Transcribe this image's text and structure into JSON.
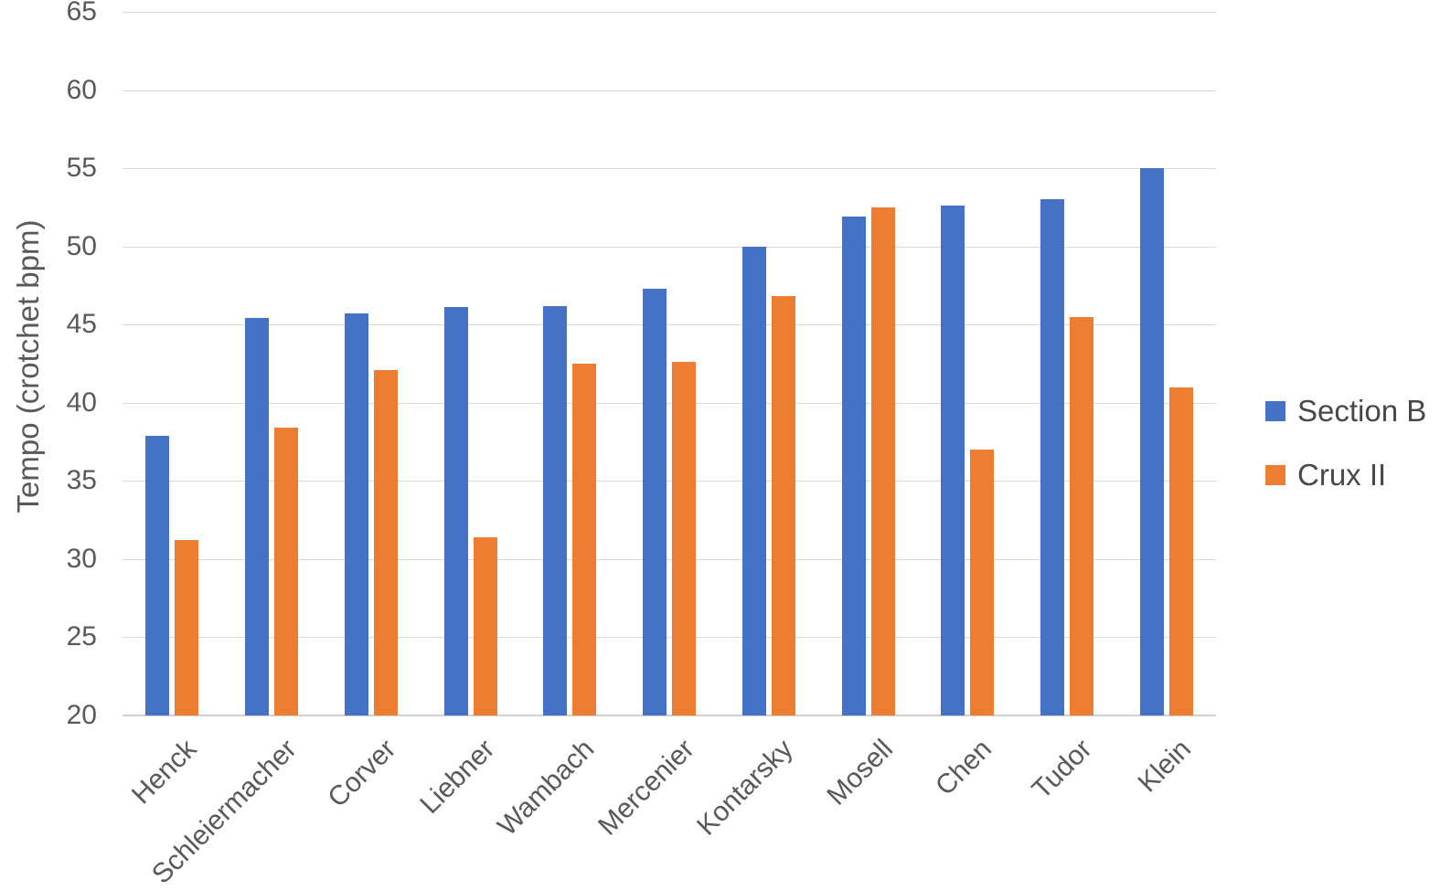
{
  "chart_data": {
    "type": "bar",
    "ylabel": "Tempo (crotchet bpm)",
    "ylim": [
      20,
      65
    ],
    "ytick_step": 5,
    "grid": true,
    "legend_position": "right",
    "categories": [
      "Henck",
      "Schleiermacher",
      "Corver",
      "Liebner",
      "Wambach",
      "Mercenier",
      "Kontarsky",
      "Mosell",
      "Chen",
      "Tudor",
      "Klein"
    ],
    "series": [
      {
        "name": "Section B",
        "color": "#4472C4",
        "values": [
          37.9,
          45.4,
          45.7,
          46.1,
          46.2,
          47.3,
          50.0,
          51.9,
          52.6,
          53.0,
          55.0
        ]
      },
      {
        "name": "Crux II",
        "color": "#ED7D31",
        "values": [
          31.2,
          38.4,
          42.1,
          31.4,
          42.5,
          42.6,
          46.8,
          52.5,
          37.0,
          45.5,
          41.0
        ]
      }
    ]
  },
  "colors": {
    "gridline": "#d9d9d9",
    "axis_line": "#cfcfcf",
    "tick_text": "#595959",
    "legend_text": "#484848",
    "background": "#ffffff"
  }
}
